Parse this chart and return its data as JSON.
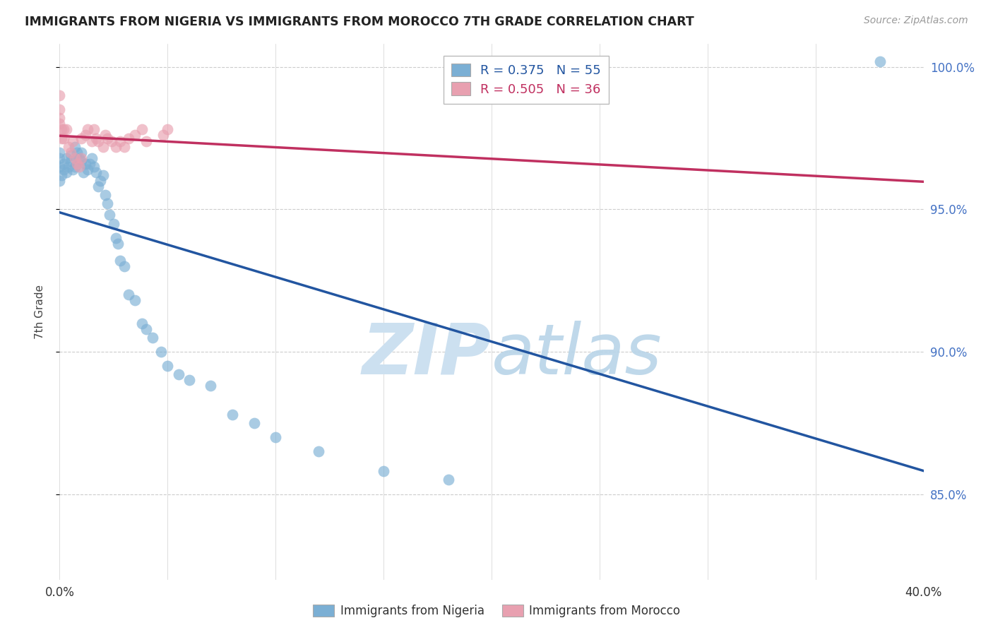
{
  "title": "IMMIGRANTS FROM NIGERIA VS IMMIGRANTS FROM MOROCCO 7TH GRADE CORRELATION CHART",
  "source": "Source: ZipAtlas.com",
  "yaxis_label": "7th Grade",
  "legend_nigeria": "Immigrants from Nigeria",
  "legend_morocco": "Immigrants from Morocco",
  "R_nigeria": 0.375,
  "N_nigeria": 55,
  "R_morocco": 0.505,
  "N_morocco": 36,
  "nigeria_color": "#7bafd4",
  "morocco_color": "#e8a0b0",
  "nigeria_line_color": "#2255a0",
  "morocco_line_color": "#c03060",
  "background_color": "#ffffff",
  "watermark_color": "#cce0f0",
  "nigeria_x": [
    0.0,
    0.0,
    0.0,
    0.0,
    0.001,
    0.002,
    0.002,
    0.003,
    0.003,
    0.004,
    0.005,
    0.005,
    0.006,
    0.007,
    0.007,
    0.008,
    0.008,
    0.009,
    0.01,
    0.01,
    0.011,
    0.012,
    0.013,
    0.014,
    0.015,
    0.016,
    0.017,
    0.018,
    0.019,
    0.02,
    0.021,
    0.022,
    0.023,
    0.025,
    0.026,
    0.027,
    0.028,
    0.03,
    0.032,
    0.035,
    0.038,
    0.04,
    0.043,
    0.047,
    0.05,
    0.055,
    0.06,
    0.07,
    0.08,
    0.09,
    0.1,
    0.12,
    0.15,
    0.18,
    0.38
  ],
  "nigeria_y": [
    0.96,
    0.965,
    0.968,
    0.97,
    0.962,
    0.964,
    0.966,
    0.963,
    0.968,
    0.965,
    0.967,
    0.969,
    0.964,
    0.965,
    0.972,
    0.966,
    0.97,
    0.968,
    0.967,
    0.97,
    0.963,
    0.966,
    0.964,
    0.966,
    0.968,
    0.965,
    0.963,
    0.958,
    0.96,
    0.962,
    0.955,
    0.952,
    0.948,
    0.945,
    0.94,
    0.938,
    0.932,
    0.93,
    0.92,
    0.918,
    0.91,
    0.908,
    0.905,
    0.9,
    0.895,
    0.892,
    0.89,
    0.888,
    0.878,
    0.875,
    0.87,
    0.865,
    0.858,
    0.855,
    1.002
  ],
  "morocco_x": [
    0.0,
    0.0,
    0.0,
    0.0,
    0.001,
    0.001,
    0.002,
    0.002,
    0.003,
    0.004,
    0.005,
    0.006,
    0.007,
    0.008,
    0.009,
    0.01,
    0.01,
    0.012,
    0.013,
    0.015,
    0.016,
    0.017,
    0.018,
    0.02,
    0.021,
    0.022,
    0.024,
    0.026,
    0.028,
    0.03,
    0.032,
    0.035,
    0.038,
    0.04,
    0.048,
    0.05
  ],
  "morocco_y": [
    0.99,
    0.985,
    0.982,
    0.98,
    0.978,
    0.975,
    0.978,
    0.975,
    0.978,
    0.972,
    0.97,
    0.974,
    0.968,
    0.966,
    0.965,
    0.968,
    0.975,
    0.976,
    0.978,
    0.974,
    0.978,
    0.975,
    0.974,
    0.972,
    0.976,
    0.975,
    0.974,
    0.972,
    0.974,
    0.972,
    0.975,
    0.976,
    0.978,
    0.974,
    0.976,
    0.978
  ],
  "xlim": [
    0.0,
    0.4
  ],
  "ylim": [
    0.82,
    1.008
  ],
  "yticks": [
    0.85,
    0.9,
    0.95,
    1.0
  ],
  "ytick_labels": [
    "85.0%",
    "90.0%",
    "95.0%",
    "100.0%"
  ],
  "xticks": [
    0.0,
    0.05,
    0.1,
    0.15,
    0.2,
    0.25,
    0.3,
    0.35,
    0.4
  ],
  "xtick_labels": [
    "0.0%",
    "",
    "",
    "",
    "",
    "",
    "",
    "",
    "40.0%"
  ]
}
